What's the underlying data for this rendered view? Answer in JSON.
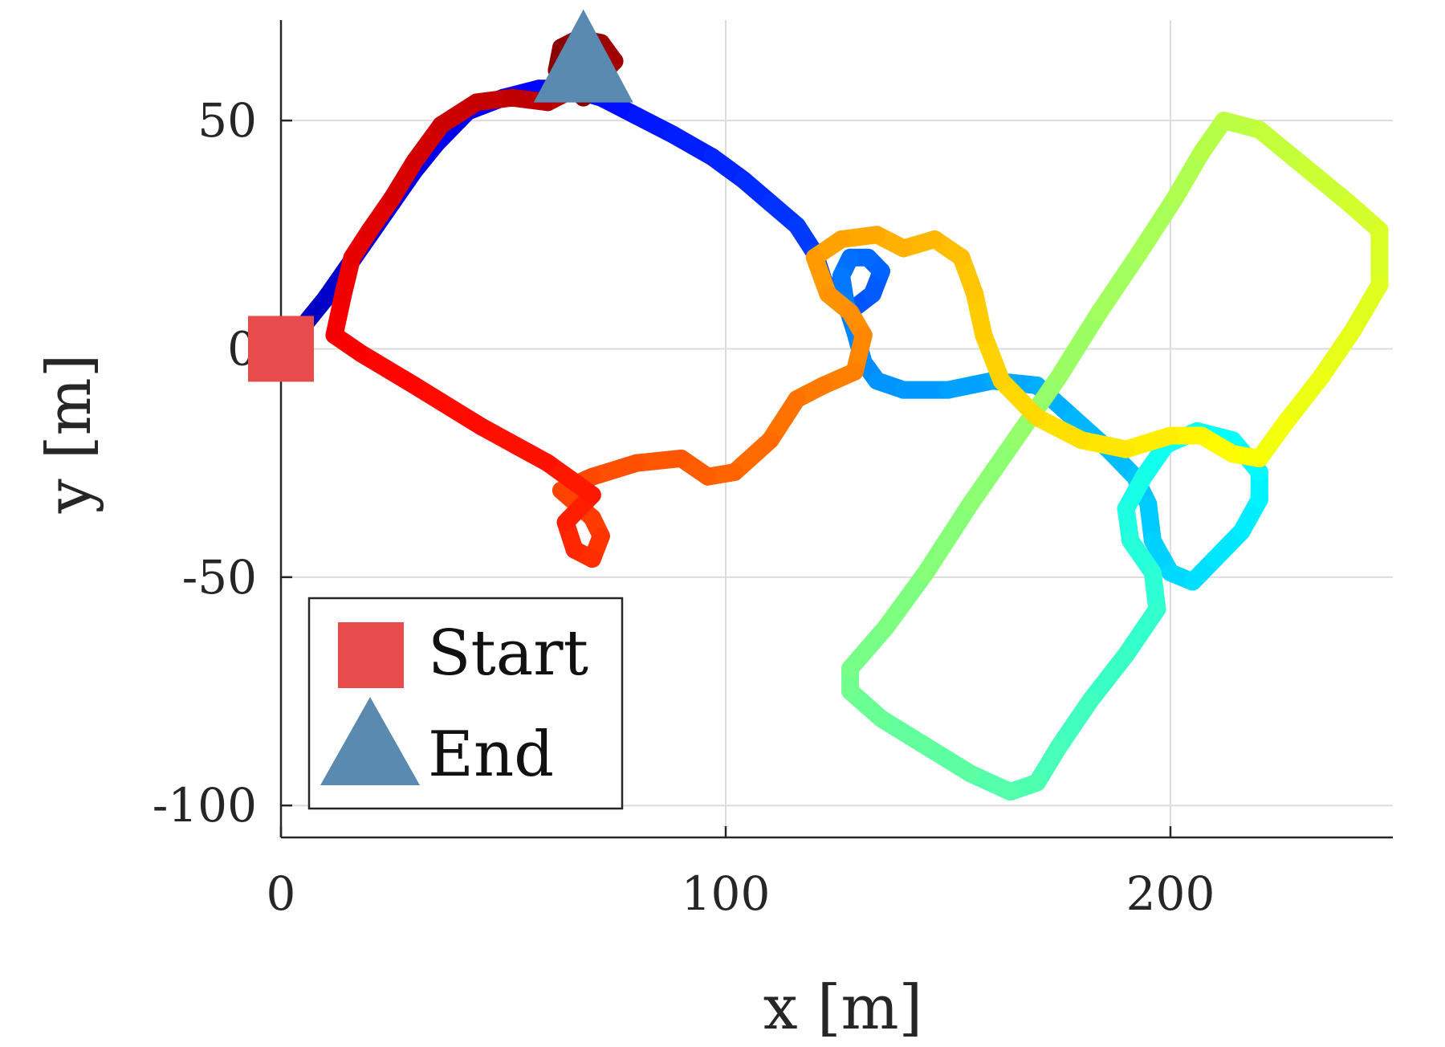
{
  "chart_data": {
    "type": "line",
    "xlabel": "x [m]",
    "ylabel": "y [m]",
    "xlim": [
      0,
      250
    ],
    "ylim": [
      -107,
      72
    ],
    "xticks": [
      0,
      100,
      200
    ],
    "yticks": [
      50,
      0,
      -50,
      -100
    ],
    "xtick_labels": [
      "0",
      "100",
      "200"
    ],
    "ytick_labels": [
      "50",
      "0",
      "-50",
      "-100"
    ],
    "grid": true,
    "legend_position": "bottom-left",
    "colormap": "jet",
    "legend": [
      {
        "label": "Start",
        "marker": "square",
        "color": "#e84b4b"
      },
      {
        "label": "End",
        "marker": "triangle",
        "color": "#5b8ab0"
      }
    ],
    "start_point": {
      "x": 0,
      "y": 0
    },
    "end_point": {
      "x": 68,
      "y": 55
    },
    "trajectory": [
      [
        0,
        0
      ],
      [
        5,
        5
      ],
      [
        10,
        11
      ],
      [
        15,
        18
      ],
      [
        20,
        25
      ],
      [
        25,
        32
      ],
      [
        30,
        39
      ],
      [
        35,
        45
      ],
      [
        42,
        52
      ],
      [
        50,
        55
      ],
      [
        58,
        57
      ],
      [
        65,
        57
      ],
      [
        72,
        55
      ],
      [
        80,
        51
      ],
      [
        88,
        47
      ],
      [
        97,
        42
      ],
      [
        104,
        37
      ],
      [
        110,
        32
      ],
      [
        116,
        27
      ],
      [
        120,
        21
      ],
      [
        122,
        15
      ],
      [
        125,
        11
      ],
      [
        129,
        9
      ],
      [
        133,
        12
      ],
      [
        135,
        17
      ],
      [
        132,
        20
      ],
      [
        128,
        20
      ],
      [
        126,
        16
      ],
      [
        127,
        10
      ],
      [
        129,
        4
      ],
      [
        131,
        -3
      ],
      [
        134,
        -7
      ],
      [
        140,
        -9
      ],
      [
        150,
        -9
      ],
      [
        160,
        -7
      ],
      [
        170,
        -8
      ],
      [
        178,
        -15
      ],
      [
        186,
        -22
      ],
      [
        192,
        -28
      ],
      [
        195,
        -34
      ],
      [
        196,
        -42
      ],
      [
        200,
        -49
      ],
      [
        205,
        -51
      ],
      [
        210,
        -46
      ],
      [
        216,
        -40
      ],
      [
        220,
        -33
      ],
      [
        220,
        -27
      ],
      [
        214,
        -20
      ],
      [
        206,
        -18
      ],
      [
        199,
        -21
      ],
      [
        194,
        -28
      ],
      [
        190,
        -35
      ],
      [
        191,
        -42
      ],
      [
        196,
        -49
      ],
      [
        197,
        -57
      ],
      [
        190,
        -67
      ],
      [
        182,
        -77
      ],
      [
        175,
        -87
      ],
      [
        170,
        -95
      ],
      [
        164,
        -97
      ],
      [
        155,
        -93
      ],
      [
        145,
        -87
      ],
      [
        135,
        -81
      ],
      [
        128,
        -75
      ],
      [
        128,
        -70
      ],
      [
        136,
        -61
      ],
      [
        145,
        -49
      ],
      [
        155,
        -34
      ],
      [
        165,
        -20
      ],
      [
        175,
        -6
      ],
      [
        184,
        8
      ],
      [
        193,
        21
      ],
      [
        201,
        33
      ],
      [
        207,
        43
      ],
      [
        212,
        50
      ],
      [
        220,
        48
      ],
      [
        230,
        40
      ],
      [
        240,
        32
      ],
      [
        247,
        26
      ],
      [
        247,
        14
      ],
      [
        241,
        4
      ],
      [
        234,
        -6
      ],
      [
        226,
        -16
      ],
      [
        220,
        -24
      ],
      [
        214,
        -23
      ],
      [
        207,
        -19
      ],
      [
        200,
        -19
      ],
      [
        190,
        -22
      ],
      [
        180,
        -20
      ],
      [
        170,
        -15
      ],
      [
        162,
        -7
      ],
      [
        158,
        3
      ],
      [
        156,
        12
      ],
      [
        153,
        20
      ],
      [
        147,
        24
      ],
      [
        140,
        22
      ],
      [
        134,
        25
      ],
      [
        126,
        24
      ],
      [
        120,
        20
      ],
      [
        123,
        12
      ],
      [
        128,
        8
      ],
      [
        131,
        3
      ],
      [
        129,
        -5
      ],
      [
        122,
        -8
      ],
      [
        116,
        -11
      ],
      [
        110,
        -20
      ],
      [
        102,
        -27
      ],
      [
        96,
        -28
      ],
      [
        90,
        -24
      ],
      [
        80,
        -25
      ],
      [
        70,
        -28
      ],
      [
        63,
        -31
      ],
      [
        70,
        -37
      ],
      [
        72,
        -41
      ],
      [
        70,
        -46
      ],
      [
        66,
        -44
      ],
      [
        64,
        -38
      ],
      [
        70,
        -32
      ],
      [
        60,
        -25
      ],
      [
        45,
        -17
      ],
      [
        30,
        -8
      ],
      [
        18,
        -1
      ],
      [
        12,
        3
      ],
      [
        14,
        12
      ],
      [
        16,
        20
      ],
      [
        20,
        26
      ],
      [
        25,
        33
      ],
      [
        30,
        41
      ],
      [
        36,
        49
      ],
      [
        44,
        54
      ],
      [
        52,
        55
      ],
      [
        60,
        54
      ],
      [
        66,
        57
      ],
      [
        72,
        60
      ],
      [
        75,
        63
      ],
      [
        72,
        67
      ],
      [
        67,
        68
      ],
      [
        63,
        66
      ],
      [
        62,
        61
      ],
      [
        68,
        55
      ]
    ]
  }
}
